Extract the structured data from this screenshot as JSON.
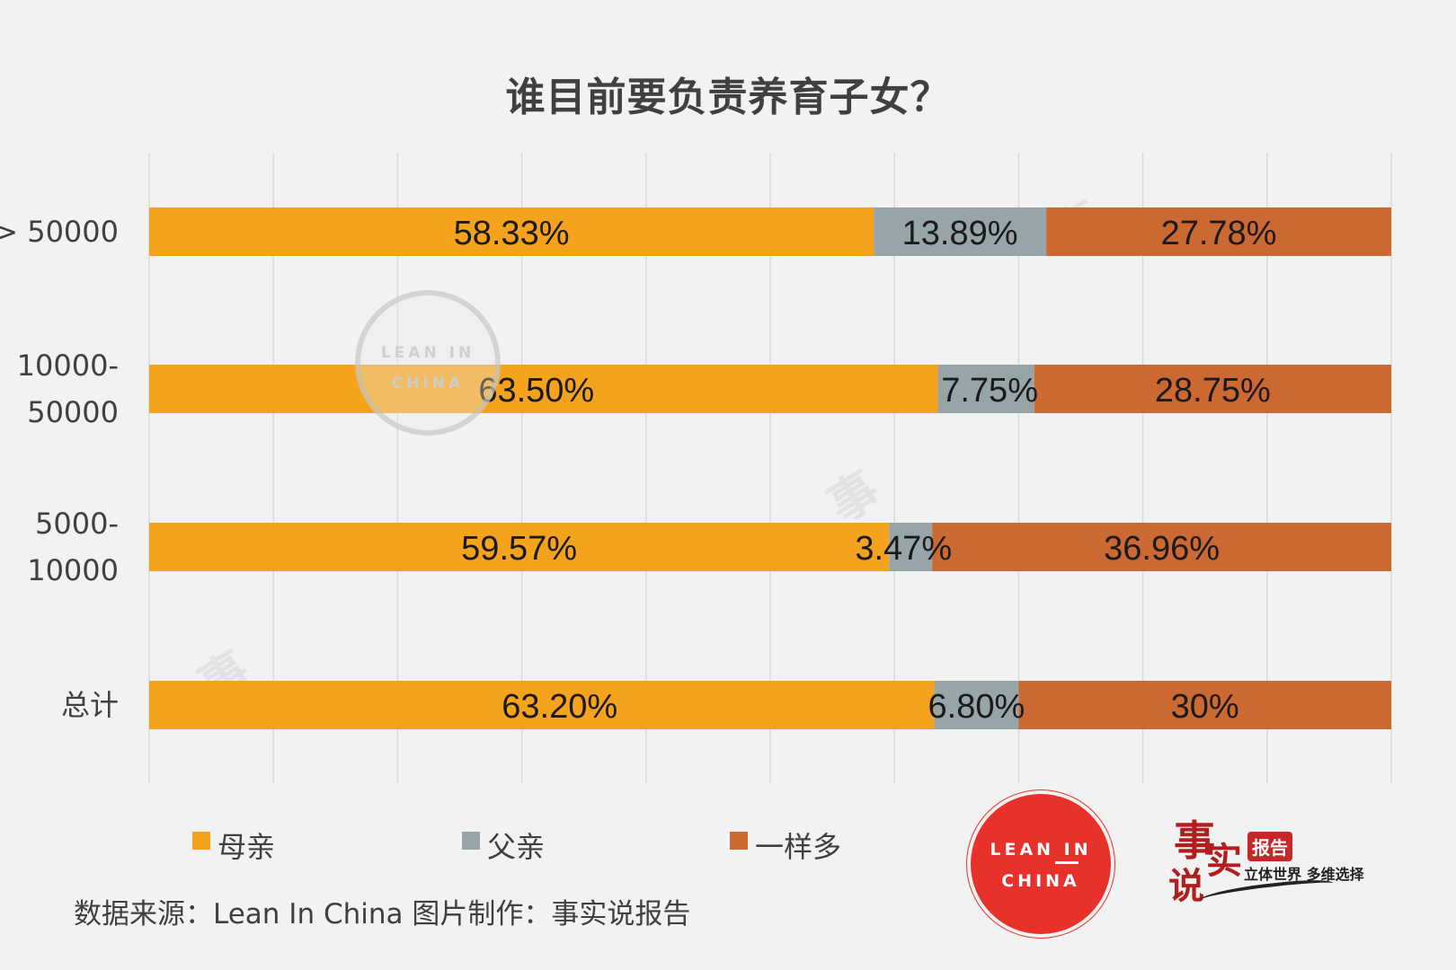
{
  "chart_data": {
    "type": "bar",
    "orientation": "horizontal",
    "stacked": true,
    "title": "谁目前要负责养育子女？",
    "categories": [
      "> 50000",
      "10000-\n50000",
      "5000-\n10000",
      "总计"
    ],
    "series": [
      {
        "name": "母亲",
        "values": [
          58.33,
          63.5,
          59.57,
          63.2
        ],
        "labels": [
          "58.33%",
          "63.50%",
          "59.57%",
          "63.20%"
        ],
        "color": "#f5a31c"
      },
      {
        "name": "父亲",
        "values": [
          13.89,
          7.75,
          3.47,
          6.8
        ],
        "labels": [
          "13.89%",
          "7.75%",
          "3.47%",
          "6.80%"
        ],
        "color": "#97a5a8"
      },
      {
        "name": "一样多",
        "values": [
          27.78,
          28.75,
          36.96,
          30
        ],
        "labels": [
          "27.78%",
          "28.75%",
          "36.96%",
          "30%"
        ],
        "color": "#cc6831"
      }
    ],
    "xlim": [
      0,
      100
    ],
    "grid": true,
    "legend_position": "bottom"
  },
  "source_text": "数据来源：Lean In China  图片制作：事实说报告",
  "logos": {
    "lean_in_line1": "LEAN IN",
    "lean_in_line2": "CHINA",
    "shishi_char1": "事",
    "shishi_char2": "实",
    "shishi_char3": "说",
    "shishi_badge": "报告",
    "shishi_tagline": "立体世界 多维选择"
  },
  "colors": {
    "background": "#f2f2f2",
    "mother": "#f5a31c",
    "father": "#97a5a8",
    "equal": "#cc6831",
    "lean_in_red": "#e8312a"
  }
}
